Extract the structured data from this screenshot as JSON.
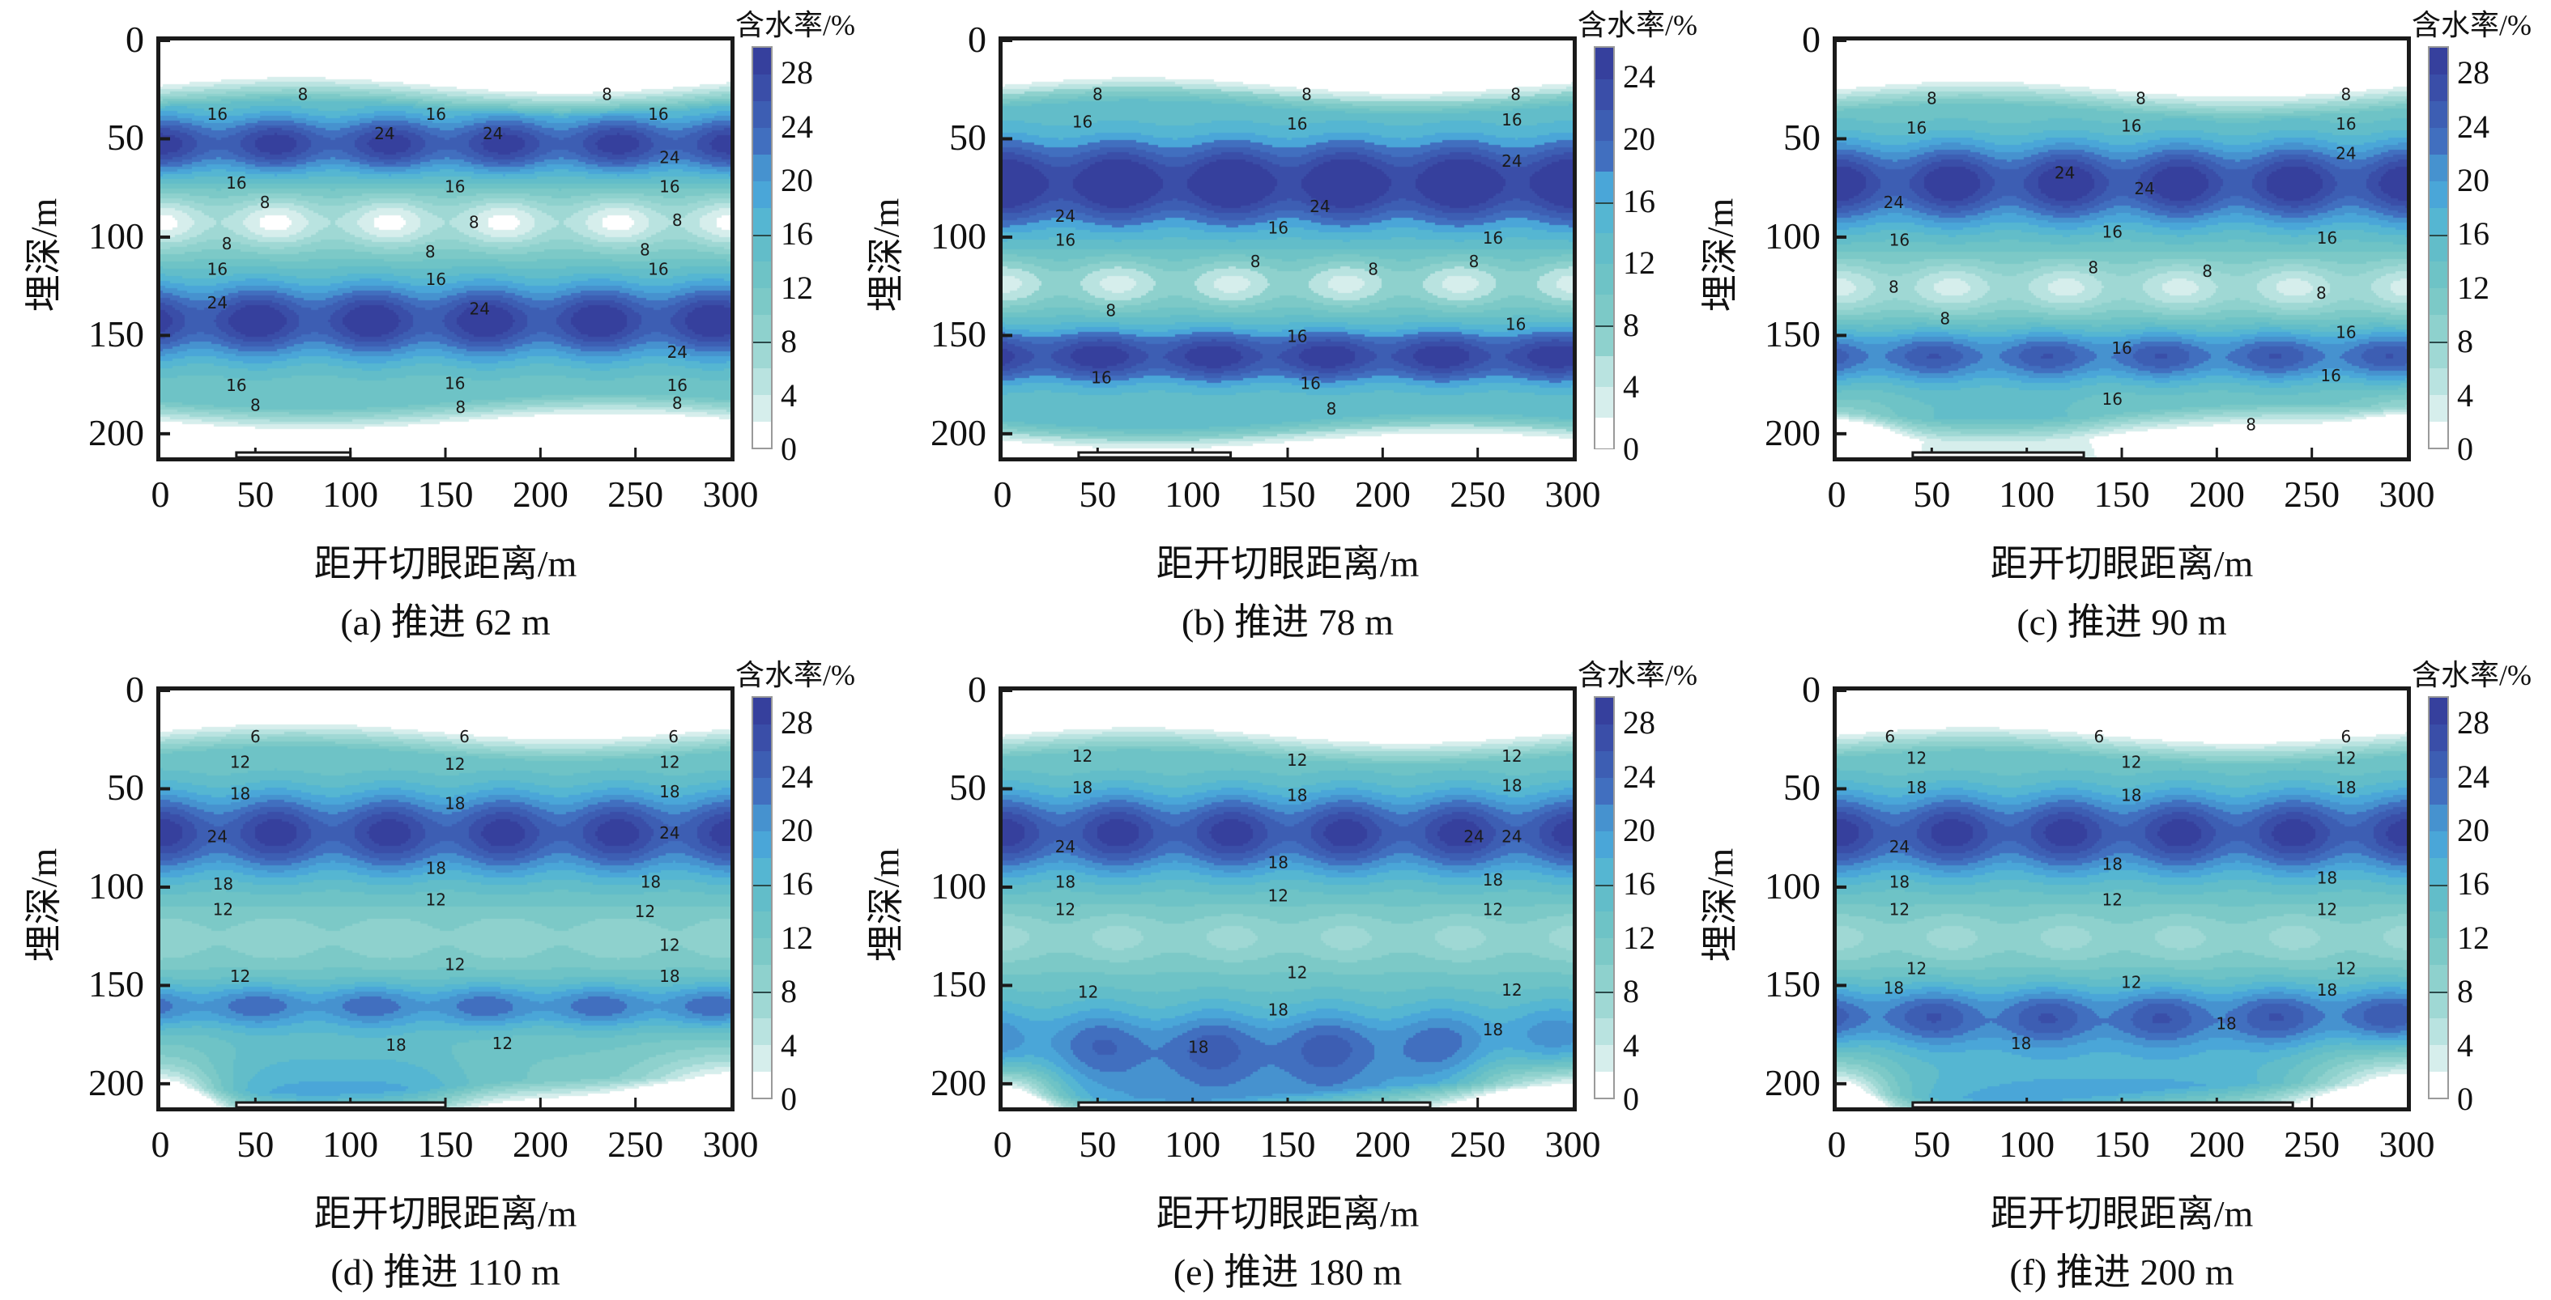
{
  "figure": {
    "y_axis_label": "埋深/m",
    "x_axis_label": "距开切眼距离/m",
    "colorbar_title": "含水率/%",
    "x_ticks": [
      0,
      50,
      100,
      150,
      200,
      250,
      300
    ],
    "y_ticks": [
      0,
      50,
      100,
      150,
      200
    ],
    "xlim": [
      0,
      300
    ],
    "ylim": [
      0,
      212
    ],
    "palette": [
      "#ffffff",
      "#d6eeec",
      "#b9e3e0",
      "#9fd8d4",
      "#8ed1cd",
      "#7cc9c7",
      "#6ec3c6",
      "#62bdc9",
      "#55b6d2",
      "#4aa6d8",
      "#4692cf",
      "#416fbf",
      "#3d5eb3",
      "#3a4ea8",
      "#36409d"
    ]
  },
  "chart_data": [
    {
      "type": "heatmap",
      "id": "a",
      "caption": "(a) 推进 62 m",
      "advance_m": 62,
      "goaf_x": [
        40,
        100
      ],
      "colorbar": {
        "ticks": [
          0,
          4,
          8,
          12,
          16,
          20,
          24,
          28
        ],
        "levels": [
          0,
          2,
          4,
          6,
          8,
          10,
          12,
          14,
          16,
          18,
          20,
          22,
          24,
          26,
          28,
          30
        ]
      },
      "contour_labels": [
        {
          "text": "8",
          "x": 75,
          "y": 28
        },
        {
          "text": "8",
          "x": 235,
          "y": 28
        },
        {
          "text": "16",
          "x": 30,
          "y": 38
        },
        {
          "text": "16",
          "x": 145,
          "y": 38
        },
        {
          "text": "16",
          "x": 262,
          "y": 38
        },
        {
          "text": "24",
          "x": 118,
          "y": 48
        },
        {
          "text": "24",
          "x": 175,
          "y": 48
        },
        {
          "text": "24",
          "x": 268,
          "y": 60
        },
        {
          "text": "16",
          "x": 40,
          "y": 73
        },
        {
          "text": "16",
          "x": 155,
          "y": 75
        },
        {
          "text": "16",
          "x": 268,
          "y": 75
        },
        {
          "text": "8",
          "x": 55,
          "y": 83
        },
        {
          "text": "8",
          "x": 165,
          "y": 93
        },
        {
          "text": "8",
          "x": 272,
          "y": 92
        },
        {
          "text": "8",
          "x": 35,
          "y": 104
        },
        {
          "text": "8",
          "x": 142,
          "y": 108
        },
        {
          "text": "8",
          "x": 255,
          "y": 107
        },
        {
          "text": "16",
          "x": 30,
          "y": 117
        },
        {
          "text": "16",
          "x": 145,
          "y": 122
        },
        {
          "text": "16",
          "x": 262,
          "y": 117
        },
        {
          "text": "24",
          "x": 30,
          "y": 134
        },
        {
          "text": "24",
          "x": 168,
          "y": 137
        },
        {
          "text": "24",
          "x": 272,
          "y": 159
        },
        {
          "text": "16",
          "x": 40,
          "y": 176
        },
        {
          "text": "16",
          "x": 155,
          "y": 175
        },
        {
          "text": "16",
          "x": 272,
          "y": 176
        },
        {
          "text": "8",
          "x": 50,
          "y": 186
        },
        {
          "text": "8",
          "x": 158,
          "y": 187
        },
        {
          "text": "8",
          "x": 272,
          "y": 185
        }
      ],
      "bands": [
        {
          "depth": 52,
          "peak": 27,
          "width": 16
        },
        {
          "depth": 142,
          "peak": 28,
          "width": 20
        }
      ],
      "lows": [
        {
          "depth": 92,
          "value": 1
        }
      ],
      "dry_top": 20,
      "dry_bottom": 195,
      "goaf_effect": 0
    },
    {
      "type": "heatmap",
      "id": "b",
      "caption": "(b) 推进 78 m",
      "advance_m": 78,
      "goaf_x": [
        40,
        120
      ],
      "colorbar": {
        "ticks": [
          0,
          4,
          8,
          12,
          16,
          20,
          24
        ],
        "levels": [
          0,
          2,
          4,
          6,
          8,
          10,
          12,
          14,
          16,
          18,
          20,
          22,
          24,
          26
        ]
      },
      "contour_labels": [
        {
          "text": "8",
          "x": 50,
          "y": 28
        },
        {
          "text": "8",
          "x": 160,
          "y": 28
        },
        {
          "text": "8",
          "x": 270,
          "y": 28
        },
        {
          "text": "16",
          "x": 42,
          "y": 42
        },
        {
          "text": "16",
          "x": 155,
          "y": 43
        },
        {
          "text": "16",
          "x": 268,
          "y": 41
        },
        {
          "text": "24",
          "x": 268,
          "y": 62
        },
        {
          "text": "24",
          "x": 33,
          "y": 90
        },
        {
          "text": "24",
          "x": 167,
          "y": 85
        },
        {
          "text": "16",
          "x": 33,
          "y": 102
        },
        {
          "text": "16",
          "x": 145,
          "y": 96
        },
        {
          "text": "16",
          "x": 258,
          "y": 101
        },
        {
          "text": "8",
          "x": 133,
          "y": 113
        },
        {
          "text": "8",
          "x": 195,
          "y": 117
        },
        {
          "text": "8",
          "x": 248,
          "y": 113
        },
        {
          "text": "8",
          "x": 57,
          "y": 138
        },
        {
          "text": "16",
          "x": 270,
          "y": 145
        },
        {
          "text": "16",
          "x": 155,
          "y": 151
        },
        {
          "text": "16",
          "x": 52,
          "y": 172
        },
        {
          "text": "16",
          "x": 162,
          "y": 175
        },
        {
          "text": "8",
          "x": 173,
          "y": 188
        }
      ],
      "bands": [
        {
          "depth": 72,
          "peak": 26,
          "width": 22
        },
        {
          "depth": 160,
          "peak": 24,
          "width": 14
        }
      ],
      "lows": [
        {
          "depth": 123,
          "value": 3
        }
      ],
      "dry_top": 20,
      "dry_bottom": 205,
      "goaf_effect": 0
    },
    {
      "type": "heatmap",
      "id": "c",
      "caption": "(c) 推进 90 m",
      "advance_m": 90,
      "goaf_x": [
        40,
        130
      ],
      "colorbar": {
        "ticks": [
          0,
          4,
          8,
          12,
          16,
          20,
          24,
          28
        ],
        "levels": [
          0,
          2,
          4,
          6,
          8,
          10,
          12,
          14,
          16,
          18,
          20,
          22,
          24,
          26,
          28,
          30
        ]
      },
      "contour_labels": [
        {
          "text": "8",
          "x": 50,
          "y": 30
        },
        {
          "text": "8",
          "x": 160,
          "y": 30
        },
        {
          "text": "8",
          "x": 268,
          "y": 28
        },
        {
          "text": "16",
          "x": 42,
          "y": 45
        },
        {
          "text": "16",
          "x": 155,
          "y": 44
        },
        {
          "text": "16",
          "x": 268,
          "y": 43
        },
        {
          "text": "24",
          "x": 268,
          "y": 58
        },
        {
          "text": "24",
          "x": 120,
          "y": 68
        },
        {
          "text": "24",
          "x": 162,
          "y": 76
        },
        {
          "text": "24",
          "x": 30,
          "y": 83
        },
        {
          "text": "16",
          "x": 33,
          "y": 102
        },
        {
          "text": "16",
          "x": 145,
          "y": 98
        },
        {
          "text": "16",
          "x": 258,
          "y": 101
        },
        {
          "text": "8",
          "x": 30,
          "y": 126
        },
        {
          "text": "8",
          "x": 135,
          "y": 116
        },
        {
          "text": "8",
          "x": 195,
          "y": 118
        },
        {
          "text": "8",
          "x": 255,
          "y": 129
        },
        {
          "text": "8",
          "x": 57,
          "y": 142
        },
        {
          "text": "16",
          "x": 268,
          "y": 149
        },
        {
          "text": "16",
          "x": 150,
          "y": 157
        },
        {
          "text": "16",
          "x": 260,
          "y": 171
        },
        {
          "text": "16",
          "x": 145,
          "y": 183
        },
        {
          "text": "8",
          "x": 218,
          "y": 196
        }
      ],
      "bands": [
        {
          "depth": 72,
          "peak": 28,
          "width": 22
        },
        {
          "depth": 160,
          "peak": 24,
          "width": 14
        }
      ],
      "lows": [
        {
          "depth": 125,
          "value": 3
        }
      ],
      "dry_top": 22,
      "dry_bottom": 200,
      "goaf_effect": 1
    },
    {
      "type": "heatmap",
      "id": "d",
      "caption": "(d) 推进 110 m",
      "advance_m": 110,
      "goaf_x": [
        40,
        150
      ],
      "colorbar": {
        "ticks": [
          0,
          4,
          8,
          12,
          16,
          20,
          24,
          28
        ],
        "levels": [
          0,
          2,
          4,
          6,
          8,
          10,
          12,
          14,
          16,
          18,
          20,
          22,
          24,
          26,
          28,
          30
        ]
      },
      "contour_labels": [
        {
          "text": "6",
          "x": 50,
          "y": 24
        },
        {
          "text": "6",
          "x": 160,
          "y": 24
        },
        {
          "text": "6",
          "x": 270,
          "y": 24
        },
        {
          "text": "12",
          "x": 42,
          "y": 37
        },
        {
          "text": "12",
          "x": 155,
          "y": 38
        },
        {
          "text": "12",
          "x": 268,
          "y": 37
        },
        {
          "text": "18",
          "x": 42,
          "y": 53
        },
        {
          "text": "18",
          "x": 155,
          "y": 58
        },
        {
          "text": "18",
          "x": 268,
          "y": 52
        },
        {
          "text": "24",
          "x": 30,
          "y": 75
        },
        {
          "text": "24",
          "x": 268,
          "y": 73
        },
        {
          "text": "18",
          "x": 145,
          "y": 91
        },
        {
          "text": "18",
          "x": 33,
          "y": 99
        },
        {
          "text": "18",
          "x": 258,
          "y": 98
        },
        {
          "text": "12",
          "x": 33,
          "y": 112
        },
        {
          "text": "12",
          "x": 145,
          "y": 107
        },
        {
          "text": "12",
          "x": 255,
          "y": 113
        },
        {
          "text": "12",
          "x": 268,
          "y": 130
        },
        {
          "text": "12",
          "x": 155,
          "y": 140
        },
        {
          "text": "12",
          "x": 42,
          "y": 146
        },
        {
          "text": "18",
          "x": 268,
          "y": 146
        },
        {
          "text": "18",
          "x": 124,
          "y": 181
        },
        {
          "text": "12",
          "x": 180,
          "y": 180
        }
      ],
      "bands": [
        {
          "depth": 72,
          "peak": 27,
          "width": 22
        },
        {
          "depth": 160,
          "peak": 22,
          "width": 12
        }
      ],
      "lows": [
        {
          "depth": 125,
          "value": 8
        }
      ],
      "dry_top": 18,
      "dry_bottom": 212,
      "goaf_effect": 2
    },
    {
      "type": "heatmap",
      "id": "e",
      "caption": "(e) 推进 180 m",
      "advance_m": 180,
      "goaf_x": [
        40,
        225
      ],
      "colorbar": {
        "ticks": [
          0,
          4,
          8,
          12,
          16,
          20,
          24,
          28
        ],
        "levels": [
          0,
          2,
          4,
          6,
          8,
          10,
          12,
          14,
          16,
          18,
          20,
          22,
          24,
          26,
          28,
          30
        ]
      },
      "contour_labels": [
        {
          "text": "12",
          "x": 42,
          "y": 34
        },
        {
          "text": "12",
          "x": 155,
          "y": 36
        },
        {
          "text": "12",
          "x": 268,
          "y": 34
        },
        {
          "text": "18",
          "x": 42,
          "y": 50
        },
        {
          "text": "18",
          "x": 155,
          "y": 54
        },
        {
          "text": "18",
          "x": 268,
          "y": 49
        },
        {
          "text": "24",
          "x": 33,
          "y": 80
        },
        {
          "text": "24",
          "x": 248,
          "y": 75
        },
        {
          "text": "24",
          "x": 268,
          "y": 75
        },
        {
          "text": "18",
          "x": 145,
          "y": 88
        },
        {
          "text": "18",
          "x": 33,
          "y": 98
        },
        {
          "text": "18",
          "x": 258,
          "y": 97
        },
        {
          "text": "12",
          "x": 33,
          "y": 112
        },
        {
          "text": "12",
          "x": 145,
          "y": 105
        },
        {
          "text": "12",
          "x": 258,
          "y": 112
        },
        {
          "text": "12",
          "x": 155,
          "y": 144
        },
        {
          "text": "12",
          "x": 45,
          "y": 154
        },
        {
          "text": "12",
          "x": 268,
          "y": 153
        },
        {
          "text": "18",
          "x": 145,
          "y": 163
        },
        {
          "text": "18",
          "x": 103,
          "y": 182
        },
        {
          "text": "18",
          "x": 258,
          "y": 173
        }
      ],
      "bands": [
        {
          "depth": 72,
          "peak": 27,
          "width": 22
        },
        {
          "depth": 178,
          "peak": 21,
          "width": 22
        }
      ],
      "lows": [
        {
          "depth": 125,
          "value": 7
        }
      ],
      "dry_top": 20,
      "dry_bottom": 215,
      "goaf_effect": 3
    },
    {
      "type": "heatmap",
      "id": "f",
      "caption": "(f) 推进 200 m",
      "advance_m": 200,
      "goaf_x": [
        40,
        240
      ],
      "colorbar": {
        "ticks": [
          0,
          4,
          8,
          12,
          16,
          20,
          24,
          28
        ],
        "levels": [
          0,
          2,
          4,
          6,
          8,
          10,
          12,
          14,
          16,
          18,
          20,
          22,
          24,
          26,
          28,
          30
        ]
      },
      "contour_labels": [
        {
          "text": "6",
          "x": 28,
          "y": 24
        },
        {
          "text": "6",
          "x": 138,
          "y": 24
        },
        {
          "text": "6",
          "x": 268,
          "y": 24
        },
        {
          "text": "12",
          "x": 42,
          "y": 35
        },
        {
          "text": "12",
          "x": 155,
          "y": 37
        },
        {
          "text": "12",
          "x": 268,
          "y": 35
        },
        {
          "text": "18",
          "x": 42,
          "y": 50
        },
        {
          "text": "18",
          "x": 155,
          "y": 54
        },
        {
          "text": "18",
          "x": 268,
          "y": 50
        },
        {
          "text": "24",
          "x": 33,
          "y": 80
        },
        {
          "text": "18",
          "x": 145,
          "y": 89
        },
        {
          "text": "18",
          "x": 33,
          "y": 98
        },
        {
          "text": "18",
          "x": 258,
          "y": 96
        },
        {
          "text": "12",
          "x": 33,
          "y": 112
        },
        {
          "text": "12",
          "x": 145,
          "y": 107
        },
        {
          "text": "12",
          "x": 258,
          "y": 112
        },
        {
          "text": "12",
          "x": 42,
          "y": 142
        },
        {
          "text": "12",
          "x": 155,
          "y": 149
        },
        {
          "text": "12",
          "x": 268,
          "y": 142
        },
        {
          "text": "18",
          "x": 30,
          "y": 152
        },
        {
          "text": "18",
          "x": 258,
          "y": 153
        },
        {
          "text": "18",
          "x": 205,
          "y": 170
        },
        {
          "text": "18",
          "x": 97,
          "y": 180
        }
      ],
      "bands": [
        {
          "depth": 72,
          "peak": 27,
          "width": 22
        },
        {
          "depth": 165,
          "peak": 24,
          "width": 16
        }
      ],
      "lows": [
        {
          "depth": 125,
          "value": 7
        }
      ],
      "dry_top": 20,
      "dry_bottom": 215,
      "goaf_effect": 4
    }
  ]
}
